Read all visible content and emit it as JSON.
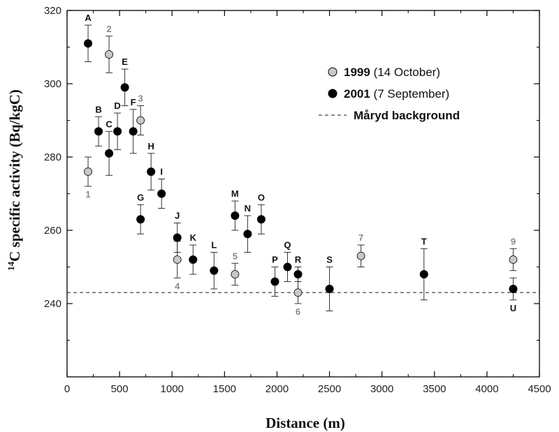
{
  "chart_data": {
    "type": "scatter",
    "title": "",
    "xlabel": "Distance (m)",
    "ylabel_superscript": "14",
    "ylabel_main": "C specific activity (Bq/kgC)",
    "xlim": [
      0,
      4500
    ],
    "ylim": [
      220,
      320
    ],
    "x_ticks": [
      0,
      500,
      1000,
      1500,
      2000,
      2500,
      3000,
      3500,
      4000,
      4500
    ],
    "y_ticks": [
      240,
      260,
      280,
      300,
      320
    ],
    "background_level": 243,
    "legend": {
      "placement": "top-right",
      "entries": [
        {
          "bold": "1999",
          "rest": " (14 October)",
          "color": "#c8c8c8"
        },
        {
          "bold": "2001",
          "rest": " (7 September)",
          "color": "#000000"
        },
        {
          "bold": "Måryd background",
          "rest": "",
          "color": "#666666"
        }
      ]
    },
    "series": [
      {
        "name": "1999 (14 October)",
        "color": "#c8c8c8",
        "points": [
          {
            "label": "1",
            "x": 200,
            "y": 276,
            "err": 4,
            "label_pos": "below"
          },
          {
            "label": "2",
            "x": 400,
            "y": 308,
            "err": 5,
            "label_pos": "above"
          },
          {
            "label": "3",
            "x": 700,
            "y": 290,
            "err": 4,
            "label_pos": "above"
          },
          {
            "label": "4",
            "x": 1050,
            "y": 252,
            "err": 5,
            "label_pos": "below"
          },
          {
            "label": "5",
            "x": 1600,
            "y": 248,
            "err": 3,
            "label_pos": "above"
          },
          {
            "label": "6",
            "x": 2200,
            "y": 243,
            "err": 3,
            "label_pos": "below"
          },
          {
            "label": "7",
            "x": 2800,
            "y": 253,
            "err": 3,
            "label_pos": "above"
          },
          {
            "label": "9",
            "x": 4250,
            "y": 252,
            "err": 3,
            "label_pos": "above"
          }
        ]
      },
      {
        "name": "2001 (7 September)",
        "color": "#000000",
        "points": [
          {
            "label": "A",
            "x": 200,
            "y": 311,
            "err": 5,
            "label_pos": "above"
          },
          {
            "label": "B",
            "x": 300,
            "y": 287,
            "err": 4,
            "label_pos": "above"
          },
          {
            "label": "C",
            "x": 400,
            "y": 281,
            "err": 6,
            "label_pos": "above"
          },
          {
            "label": "D",
            "x": 480,
            "y": 287,
            "err": 5,
            "label_pos": "above"
          },
          {
            "label": "E",
            "x": 550,
            "y": 299,
            "err": 5,
            "label_pos": "above"
          },
          {
            "label": "F",
            "x": 630,
            "y": 287,
            "err": 6,
            "label_pos": "above"
          },
          {
            "label": "G",
            "x": 700,
            "y": 263,
            "err": 4,
            "label_pos": "above"
          },
          {
            "label": "H",
            "x": 800,
            "y": 276,
            "err": 5,
            "label_pos": "above"
          },
          {
            "label": "I",
            "x": 900,
            "y": 270,
            "err": 4,
            "label_pos": "above"
          },
          {
            "label": "J",
            "x": 1050,
            "y": 258,
            "err": 4,
            "label_pos": "above"
          },
          {
            "label": "K",
            "x": 1200,
            "y": 252,
            "err": 4,
            "label_pos": "above"
          },
          {
            "label": "L",
            "x": 1400,
            "y": 249,
            "err": 5,
            "label_pos": "above"
          },
          {
            "label": "M",
            "x": 1600,
            "y": 264,
            "err": 4,
            "label_pos": "above"
          },
          {
            "label": "N",
            "x": 1720,
            "y": 259,
            "err": 5,
            "label_pos": "above"
          },
          {
            "label": "O",
            "x": 1850,
            "y": 263,
            "err": 4,
            "label_pos": "above"
          },
          {
            "label": "P",
            "x": 1980,
            "y": 246,
            "err": 4,
            "label_pos": "above"
          },
          {
            "label": "Q",
            "x": 2100,
            "y": 250,
            "err": 4,
            "label_pos": "above"
          },
          {
            "label": "R",
            "x": 2200,
            "y": 248,
            "err": 2,
            "label_pos": "above"
          },
          {
            "label": "S",
            "x": 2500,
            "y": 244,
            "err": 6,
            "label_pos": "above"
          },
          {
            "label": "T",
            "x": 3400,
            "y": 248,
            "err": 7,
            "label_pos": "above"
          },
          {
            "label": "U",
            "x": 4250,
            "y": 244,
            "err": 3,
            "label_pos": "below"
          }
        ]
      }
    ]
  }
}
